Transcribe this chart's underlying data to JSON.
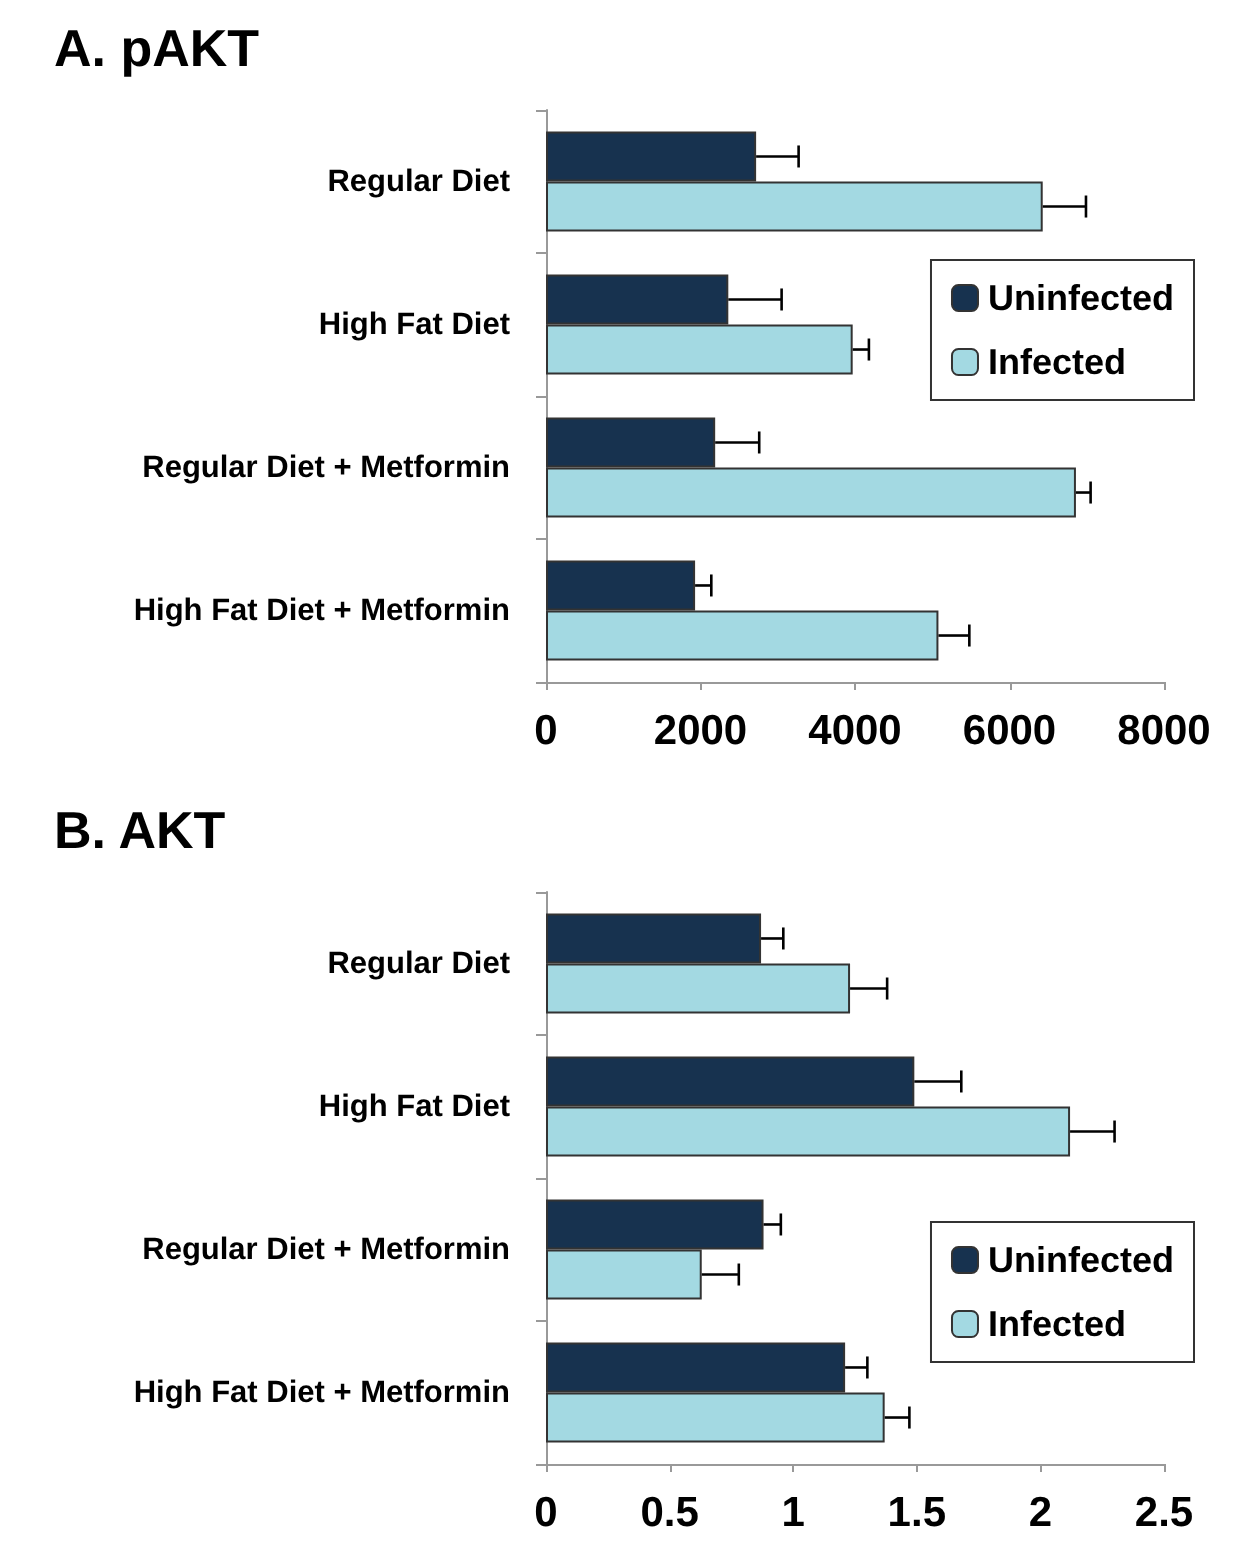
{
  "chart_data": [
    {
      "type": "bar",
      "title": "A. pAKT",
      "orientation": "horizontal",
      "categories": [
        "Regular Diet",
        "High Fat Diet",
        "Regular Diet + Metformin",
        "High Fat Diet + Metformin"
      ],
      "series": [
        {
          "name": "Uninfected",
          "color": "#17324f",
          "values": [
            2720,
            2360,
            2190,
            1930
          ],
          "errors": [
            [
              2720,
              3270
            ],
            [
              2360,
              3050
            ],
            [
              2190,
              2760
            ],
            [
              1930,
              2140
            ]
          ]
        },
        {
          "name": "Infected",
          "color": "#a3d9e2",
          "values": [
            6430,
            3970,
            6860,
            5080
          ],
          "errors": [
            [
              6430,
              6990
            ],
            [
              3970,
              4180
            ],
            [
              6860,
              7050
            ],
            [
              5080,
              5480
            ]
          ]
        }
      ],
      "xlim": [
        0,
        8000
      ],
      "xticks": [
        0,
        2000,
        4000,
        6000,
        8000
      ],
      "grid": false,
      "legend": "right"
    },
    {
      "type": "bar",
      "title": "B. AKT",
      "orientation": "horizontal",
      "categories": [
        "Regular Diet",
        "High Fat Diet",
        "Regular Diet + Metformin",
        "High Fat Diet + Metformin"
      ],
      "series": [
        {
          "name": "Uninfected",
          "color": "#17324f",
          "values": [
            0.87,
            1.49,
            0.88,
            1.21
          ],
          "errors": [
            [
              0.87,
              0.96
            ],
            [
              1.49,
              1.68
            ],
            [
              0.88,
              0.95
            ],
            [
              1.21,
              1.3
            ]
          ]
        },
        {
          "name": "Infected",
          "color": "#a3d9e2",
          "values": [
            1.23,
            2.12,
            0.63,
            1.37
          ],
          "errors": [
            [
              1.23,
              1.38
            ],
            [
              2.12,
              2.3
            ],
            [
              0.63,
              0.78
            ],
            [
              1.37,
              1.47
            ]
          ]
        }
      ],
      "xlim": [
        0,
        2.5
      ],
      "xticks": [
        0,
        0.5,
        1,
        1.5,
        2,
        2.5
      ],
      "grid": false,
      "legend": "bottom right"
    }
  ]
}
